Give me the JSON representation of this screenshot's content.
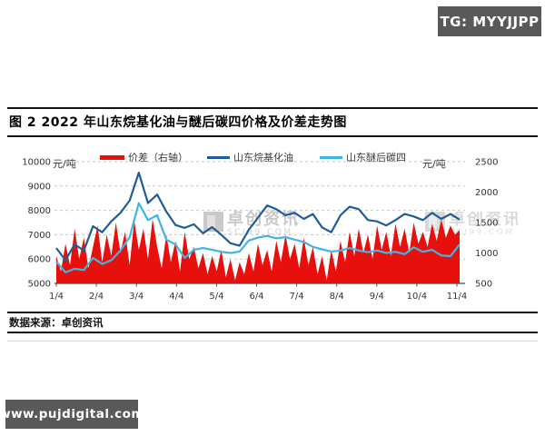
{
  "header": {
    "tg_badge": "TG: MYYJJPP"
  },
  "figure": {
    "title": "图 2 2022 年山东烷基化油与醚后碳四价格及价差走势图",
    "source_label": "数据来源：卓创资讯"
  },
  "watermark": {
    "text": "卓创资讯",
    "subtext": "SCI99.COM"
  },
  "footer": {
    "website": "www.pujdigital.com"
  },
  "chart_data": {
    "type": "line+area",
    "legend_position": "top",
    "grid": "horizontal-dashed",
    "x_tick_labels": [
      "1/4",
      "2/4",
      "3/4",
      "4/4",
      "5/4",
      "6/4",
      "7/4",
      "8/4",
      "9/4",
      "10/4",
      "11/4"
    ],
    "left_axis": {
      "unit": "元/吨",
      "min": 5000,
      "max": 10000,
      "ticks": [
        10000,
        9000,
        8000,
        7000,
        6000,
        5000
      ]
    },
    "right_axis": {
      "unit": "元/吨",
      "min": 500,
      "max": 2500,
      "ticks": [
        2500,
        2000,
        1500,
        1000,
        500
      ]
    },
    "series": [
      {
        "name": "价差（右轴）",
        "type": "area",
        "axis": "right",
        "color": "#e8100d",
        "values": [
          950,
          700,
          1150,
          800,
          1400,
          900,
          1250,
          750,
          1100,
          1450,
          850,
          1300,
          950,
          1500,
          1000,
          1350,
          800,
          1530,
          1050,
          1400,
          900,
          1560,
          1100,
          750,
          1300,
          850,
          1200,
          700,
          1350,
          900,
          1100,
          750,
          1000,
          650,
          950,
          700,
          1050,
          600,
          900,
          550,
          850,
          650,
          1000,
          700,
          1150,
          800,
          1050,
          700,
          1200,
          850,
          1300,
          900,
          1150,
          750,
          1250,
          800,
          1100,
          650,
          950,
          550,
          1050,
          700,
          1200,
          850,
          1350,
          950,
          1400,
          1000,
          1300,
          900,
          1450,
          1050,
          1350,
          950,
          1480,
          1100,
          1400,
          1000,
          1500,
          1150,
          1350,
          1100,
          1480,
          1200,
          1550,
          1250,
          1450,
          1300,
          1380
        ]
      },
      {
        "name": "山东烷基化油",
        "type": "line",
        "axis": "left",
        "color": "#1f5c99",
        "values": [
          6450,
          5950,
          6600,
          6350,
          7350,
          7100,
          7550,
          7900,
          8400,
          9550,
          8300,
          8650,
          7950,
          7400,
          7280,
          7430,
          7060,
          7310,
          7000,
          6650,
          6550,
          7200,
          7700,
          8200,
          8050,
          7800,
          7900,
          7650,
          7850,
          7300,
          7100,
          7800,
          8150,
          8050,
          7600,
          7550,
          7380,
          7600,
          7850,
          7750,
          7600,
          7900,
          7650,
          7850,
          7620
        ]
      },
      {
        "name": "山东醚后碳四",
        "type": "line",
        "axis": "left",
        "color": "#41b4e6",
        "values": [
          5900,
          5450,
          5600,
          5550,
          6050,
          5800,
          5950,
          6350,
          6900,
          8300,
          7600,
          7800,
          6800,
          6600,
          6050,
          6380,
          6450,
          6380,
          6300,
          6250,
          6310,
          6760,
          6880,
          6950,
          6850,
          6900,
          6800,
          6700,
          6500,
          6400,
          6310,
          6350,
          6450,
          6350,
          6280,
          6350,
          6250,
          6300,
          6200,
          6480,
          6300,
          6380,
          6150,
          6120,
          6600
        ]
      }
    ]
  }
}
